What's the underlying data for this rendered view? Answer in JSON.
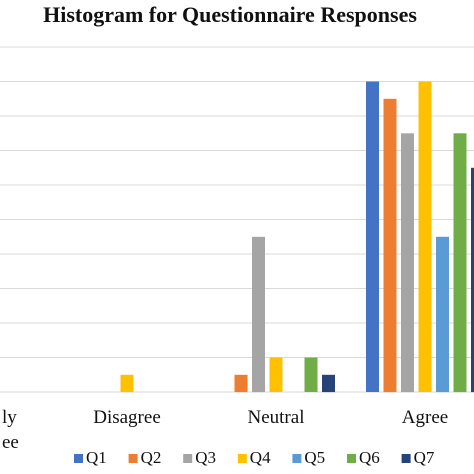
{
  "chart_data": {
    "type": "bar",
    "title": "Histogram for Questionnaire Responses",
    "xlabel": "",
    "ylabel": "",
    "categories": [
      "Strongly Disagree",
      "Disagree",
      "Neutral",
      "Agree"
    ],
    "category_visible_text": [
      "ly",
      "Disagree",
      "Neutral",
      "Agree"
    ],
    "category_visible_text_line2": [
      "ee",
      "",
      "",
      ""
    ],
    "ylim": [
      0,
      11
    ],
    "grid": true,
    "legend": "bottom",
    "series": [
      {
        "name": "Q1",
        "color": "#4472C4",
        "values": [
          0,
          0,
          0,
          9
        ]
      },
      {
        "name": "Q2",
        "color": "#ED7D31",
        "values": [
          0,
          0,
          0.5,
          8.5
        ]
      },
      {
        "name": "Q3",
        "color": "#A5A5A5",
        "values": [
          0,
          0,
          4.5,
          7.5
        ]
      },
      {
        "name": "Q4",
        "color": "#FFC000",
        "values": [
          0,
          0.5,
          1,
          9
        ]
      },
      {
        "name": "Q5",
        "color": "#5B9BD5",
        "values": [
          0,
          0,
          0,
          4.5
        ]
      },
      {
        "name": "Q6",
        "color": "#70AD47",
        "values": [
          0,
          0,
          1,
          7.5
        ]
      },
      {
        "name": "Q7",
        "color": "#264478",
        "values": [
          0,
          0,
          0.5,
          6.5
        ]
      }
    ]
  }
}
